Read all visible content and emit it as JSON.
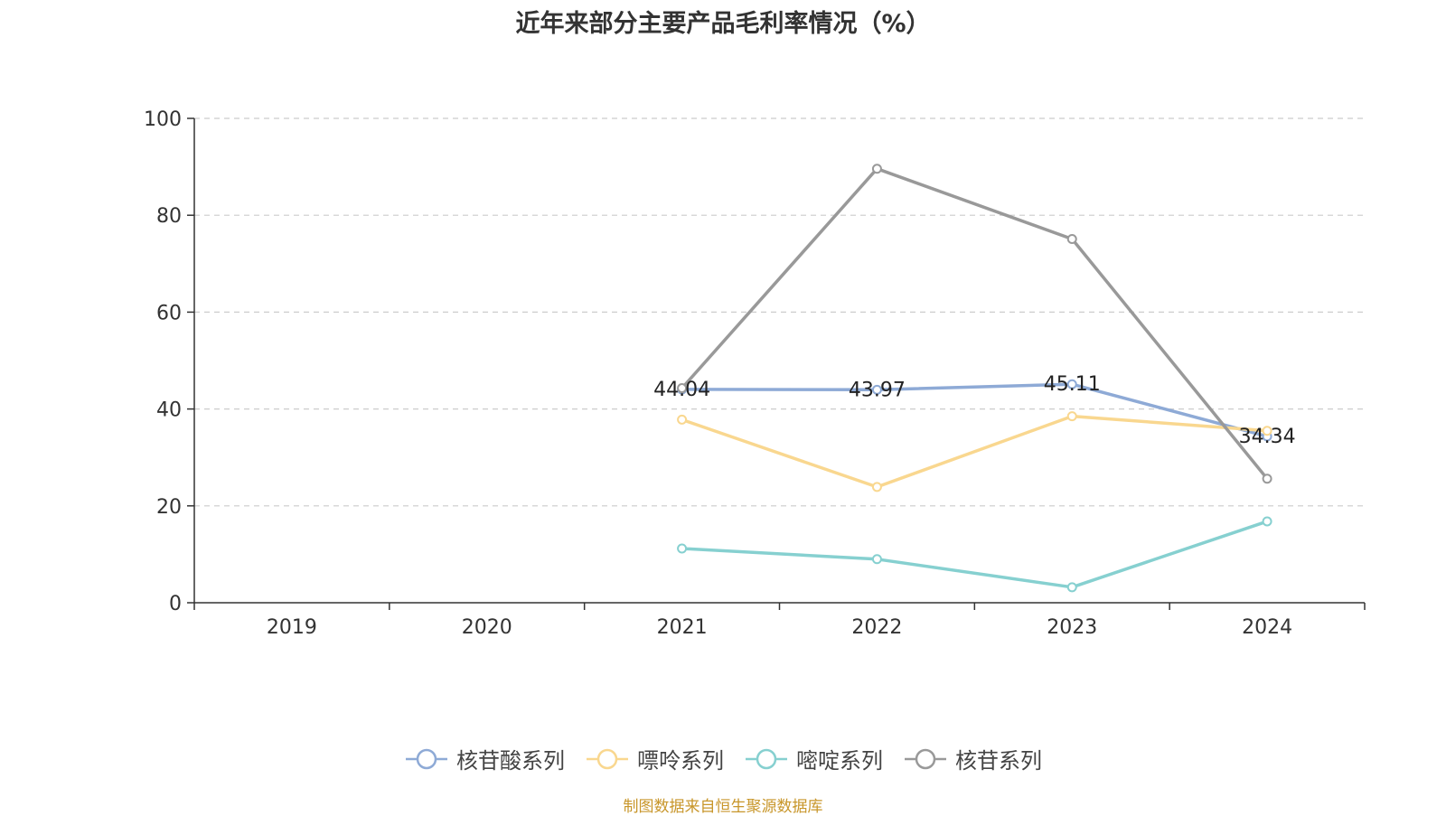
{
  "chart_data": {
    "type": "line",
    "title": "近年来部分主要产品毛利率情况（%）",
    "categories": [
      "2019",
      "2020",
      "2021",
      "2022",
      "2023",
      "2024"
    ],
    "ylim": [
      0,
      100
    ],
    "yticks": [
      "0",
      "20",
      "40",
      "60",
      "80",
      "100"
    ],
    "grid": true,
    "legend_position": "bottom",
    "series": [
      {
        "name": "核苷酸系列",
        "color": "#8eaad6",
        "values": [
          null,
          null,
          44.04,
          43.97,
          45.11,
          34.34
        ],
        "labels": [
          "",
          "",
          "44.04",
          "43.97",
          "45.11",
          "34.34"
        ]
      },
      {
        "name": "嘌呤系列",
        "color": "#f9d78f",
        "values": [
          null,
          null,
          37.8,
          23.9,
          38.5,
          35.5
        ],
        "labels": [
          "",
          "",
          "",
          "",
          "",
          ""
        ]
      },
      {
        "name": "嘧啶系列",
        "color": "#86d0d0",
        "values": [
          null,
          null,
          11.2,
          9.0,
          3.2,
          16.8
        ],
        "labels": [
          "",
          "",
          "",
          "",
          "",
          ""
        ]
      },
      {
        "name": "核苷系列",
        "color": "#999999",
        "values": [
          null,
          null,
          44.3,
          89.6,
          75.1,
          25.6
        ],
        "labels": [
          "",
          "",
          "",
          "",
          "",
          ""
        ]
      }
    ]
  },
  "source": "制图数据来自恒生聚源数据库"
}
